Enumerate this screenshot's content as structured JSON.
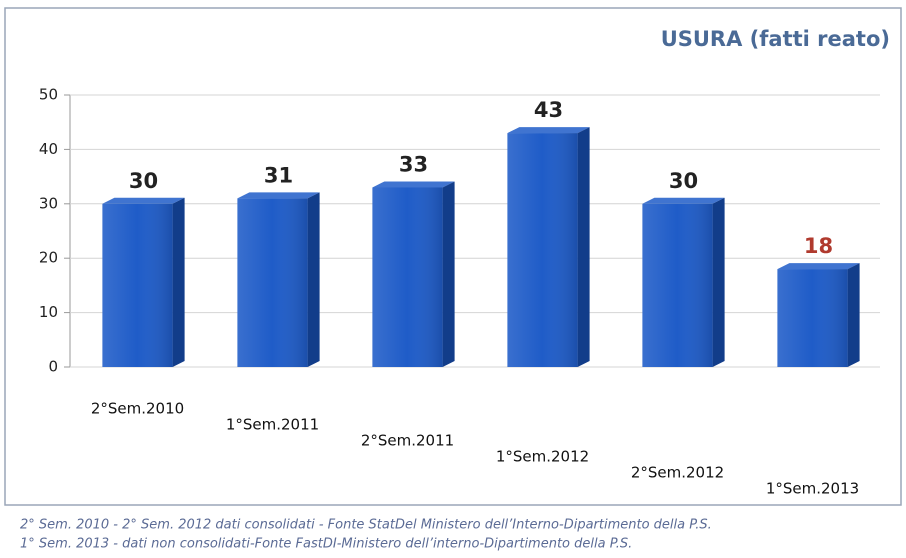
{
  "chart_data": {
    "type": "bar",
    "title": "USURA (fatti reato)",
    "categories": [
      "2°Sem.2010",
      "1°Sem.2011",
      "2°Sem.2011",
      "1°Sem.2012",
      "2°Sem.2012",
      "1°Sem.2013"
    ],
    "values": [
      30,
      31,
      33,
      43,
      30,
      18
    ],
    "color": "#1f5cc8",
    "label_colors": [
      "#222222",
      "#222222",
      "#222222",
      "#222222",
      "#222222",
      "#b03a2e"
    ],
    "ylim": [
      0,
      50
    ],
    "yticks": [
      0,
      10,
      20,
      30,
      40,
      50
    ],
    "grid": true,
    "notes": [
      "2° Sem. 2010 - 2° Sem. 2012 dati consolidati - Fonte StatDel Ministero dell’Interno-Dipartimento della P.S.",
      "1° Sem. 2013 - dati non consolidati-Fonte FastDI-Ministero dell’interno-Dipartimento della P.S."
    ]
  }
}
